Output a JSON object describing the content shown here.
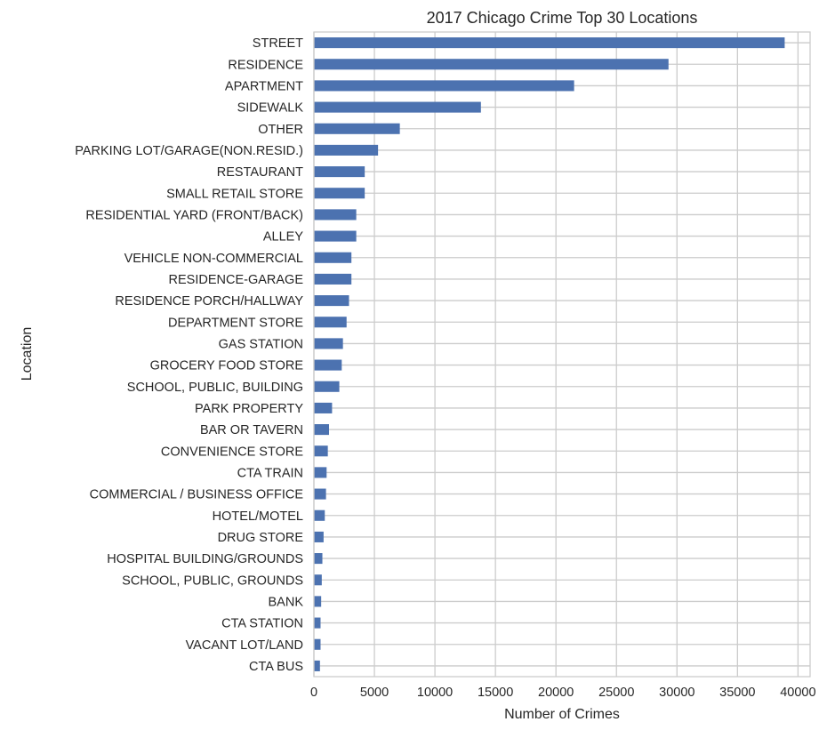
{
  "chart_data": {
    "type": "bar",
    "orientation": "horizontal",
    "title": "2017 Chicago Crime Top 30 Locations",
    "xlabel": "Number of Crimes",
    "ylabel": "Location",
    "xlim": [
      0,
      41000
    ],
    "xticks": [
      0,
      5000,
      10000,
      15000,
      20000,
      25000,
      30000,
      35000,
      40000
    ],
    "grid": true,
    "bar_color": "#4c72b0",
    "categories": [
      "STREET",
      "RESIDENCE",
      "APARTMENT",
      "SIDEWALK",
      "OTHER",
      "PARKING LOT/GARAGE(NON.RESID.)",
      "RESTAURANT",
      "SMALL RETAIL STORE",
      "RESIDENTIAL YARD (FRONT/BACK)",
      "ALLEY",
      "VEHICLE NON-COMMERCIAL",
      "RESIDENCE-GARAGE",
      "RESIDENCE PORCH/HALLWAY",
      "DEPARTMENT STORE",
      "GAS STATION",
      "GROCERY FOOD STORE",
      "SCHOOL, PUBLIC, BUILDING",
      "PARK PROPERTY",
      "BAR OR TAVERN",
      "CONVENIENCE STORE",
      "CTA TRAIN",
      "COMMERCIAL / BUSINESS OFFICE",
      "HOTEL/MOTEL",
      "DRUG STORE",
      "HOSPITAL BUILDING/GROUNDS",
      "SCHOOL, PUBLIC, GROUNDS",
      "BANK",
      "CTA STATION",
      "VACANT LOT/LAND",
      "CTA BUS"
    ],
    "values": [
      38900,
      29300,
      21500,
      13800,
      7100,
      5300,
      4200,
      4200,
      3500,
      3500,
      3100,
      3100,
      2900,
      2700,
      2400,
      2300,
      2100,
      1500,
      1250,
      1150,
      1050,
      1000,
      900,
      800,
      700,
      650,
      600,
      550,
      550,
      500
    ]
  }
}
